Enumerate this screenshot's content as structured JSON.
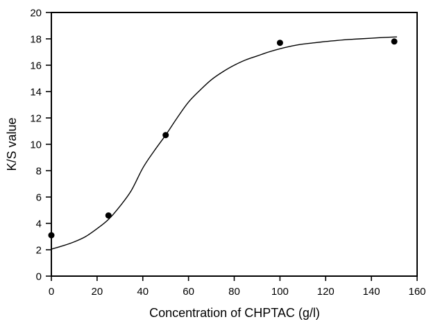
{
  "figure": {
    "background": "#ffffff",
    "foreground": "#000000"
  },
  "chart_data": {
    "type": "scatter",
    "title": "",
    "xlabel": "Concentration of CHPTAC (g/l)",
    "ylabel": "K/S value",
    "xlim": [
      0,
      160
    ],
    "ylim": [
      0,
      20
    ],
    "x_ticks": [
      0,
      20,
      40,
      60,
      80,
      100,
      120,
      140,
      160
    ],
    "y_ticks": [
      0,
      2,
      4,
      6,
      8,
      10,
      12,
      14,
      16,
      18,
      20
    ],
    "grid": false,
    "legend": null,
    "frame": "full-box",
    "series": [
      {
        "name": "measured-points",
        "type": "scatter",
        "marker": "filled-circle",
        "color": "#000000",
        "points": [
          [
            0,
            3.1
          ],
          [
            25,
            4.6
          ],
          [
            50,
            10.7
          ],
          [
            100,
            17.7
          ],
          [
            150,
            17.8
          ]
        ]
      },
      {
        "name": "sigmoid-fit-curve",
        "type": "line",
        "color": "#000000",
        "points": [
          [
            0,
            2.05
          ],
          [
            5,
            2.3
          ],
          [
            10,
            2.6
          ],
          [
            15,
            3.0
          ],
          [
            20,
            3.6
          ],
          [
            25,
            4.3
          ],
          [
            30,
            5.3
          ],
          [
            35,
            6.5
          ],
          [
            40,
            8.2
          ],
          [
            45,
            9.5
          ],
          [
            50,
            10.7
          ],
          [
            55,
            12.0
          ],
          [
            60,
            13.2
          ],
          [
            65,
            14.1
          ],
          [
            70,
            14.9
          ],
          [
            75,
            15.5
          ],
          [
            80,
            16.0
          ],
          [
            85,
            16.4
          ],
          [
            90,
            16.7
          ],
          [
            95,
            17.0
          ],
          [
            100,
            17.25
          ],
          [
            105,
            17.45
          ],
          [
            110,
            17.6
          ],
          [
            115,
            17.7
          ],
          [
            120,
            17.8
          ],
          [
            125,
            17.88
          ],
          [
            130,
            17.95
          ],
          [
            135,
            18.0
          ],
          [
            140,
            18.05
          ],
          [
            145,
            18.1
          ],
          [
            151,
            18.15
          ]
        ]
      }
    ]
  }
}
